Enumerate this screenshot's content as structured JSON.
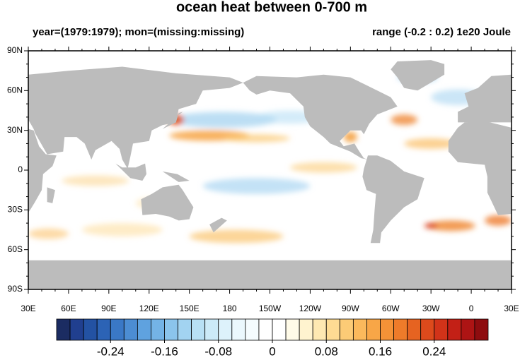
{
  "map": {
    "title": "ocean heat between 0-700 m",
    "left_subtitle": "year=(1979:1979); mon=(missing:missing)",
    "right_subtitle": "range (-0.2 : 0.2) 1e20 Joule",
    "lat_ticks": [
      "90N",
      "60N",
      "30N",
      "0",
      "30S",
      "60S",
      "90S"
    ],
    "lon_ticks": [
      "30E",
      "60E",
      "90E",
      "120E",
      "150E",
      "180",
      "150W",
      "120W",
      "90W",
      "60W",
      "30W",
      "0",
      "30E"
    ],
    "colorbar": {
      "colors": [
        "#1b2c62",
        "#203f8f",
        "#2352a3",
        "#2c63b5",
        "#3a78c6",
        "#4c8dd3",
        "#5fa2df",
        "#74b3e6",
        "#8bc4ec",
        "#a2d3f1",
        "#b8e0f5",
        "#cceaf8",
        "#ddf2fb",
        "#ebf8fd",
        "#f5fcfe",
        "#ffffff",
        "#ffffff",
        "#fffbe8",
        "#fff3cf",
        "#fee8b2",
        "#fedb93",
        "#fccb76",
        "#fbb95c",
        "#f8a647",
        "#f49237",
        "#ee7b2a",
        "#e66321",
        "#dd4a1c",
        "#d23319",
        "#c32016",
        "#ad1414",
        "#8e0c0f"
      ],
      "ticks": [
        -0.24,
        -0.16,
        -0.08,
        0,
        0.08,
        0.16,
        0.24
      ]
    }
  }
}
